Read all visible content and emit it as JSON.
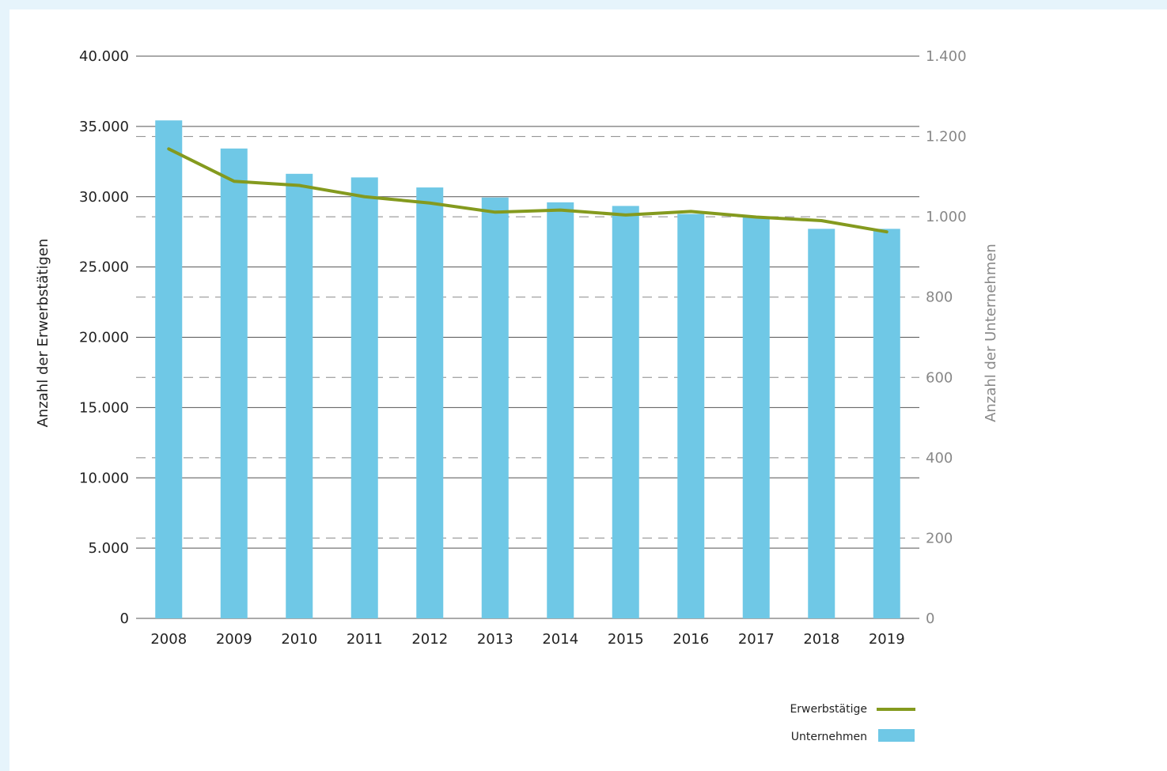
{
  "chart_data": {
    "type": "bar",
    "categories": [
      "2008",
      "2009",
      "2010",
      "2011",
      "2012",
      "2013",
      "2014",
      "2015",
      "2016",
      "2017",
      "2018",
      "2019"
    ],
    "series": [
      {
        "name": "Unternehmen",
        "type": "bar",
        "axis": "right",
        "values": [
          1240,
          1170,
          1107,
          1098,
          1073,
          1048,
          1036,
          1027,
          1007,
          999,
          970,
          970
        ],
        "color": "#6fc8e6"
      },
      {
        "name": "Erwerbstätige",
        "type": "line",
        "axis": "left",
        "values": [
          33400,
          31100,
          30800,
          30000,
          29550,
          28900,
          29050,
          28700,
          28950,
          28550,
          28300,
          27500
        ],
        "color": "#849a1e"
      }
    ],
    "y_left": {
      "label": "Anzahl der Erwerbstätigen",
      "range": [
        0,
        40000
      ],
      "ticks": [
        0,
        5000,
        10000,
        15000,
        20000,
        25000,
        30000,
        35000,
        40000
      ],
      "tick_labels": [
        "0",
        "5.000",
        "10.000",
        "15.000",
        "20.000",
        "25.000",
        "30.000",
        "35.000",
        "40.000"
      ]
    },
    "y_right": {
      "label": "Anzahl der Unternehmen",
      "range": [
        0,
        1400
      ],
      "ticks": [
        0,
        200,
        400,
        600,
        800,
        1000,
        1200,
        1400
      ],
      "tick_labels": [
        "0",
        "200",
        "400",
        "600",
        "800",
        "1.000",
        "1.200",
        "1.400"
      ]
    },
    "grid": true,
    "legend_position": "bottom-right",
    "legend": [
      {
        "label": "Erwerbstätige",
        "symbol": "line"
      },
      {
        "label": "Unternehmen",
        "symbol": "bar"
      }
    ]
  }
}
